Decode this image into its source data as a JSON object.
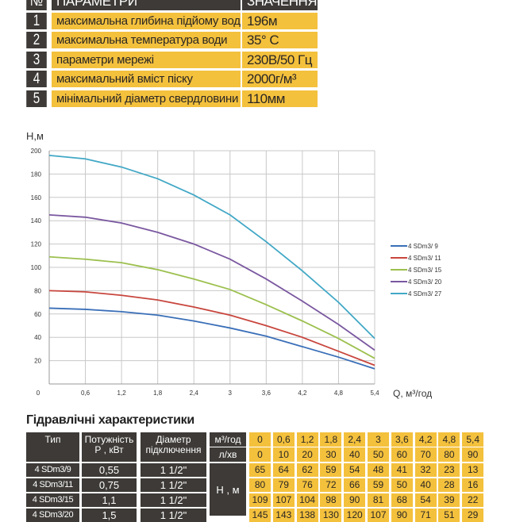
{
  "params_table": {
    "headers": {
      "num": "№",
      "param": "ПАРАМЕТРИ",
      "value": "ЗНАЧЕННЯ"
    },
    "rows": [
      {
        "num": "1",
        "param": "максимальна глибина підйому води",
        "value": "196м"
      },
      {
        "num": "2",
        "param": "максимальна температура води",
        "value": "35° C"
      },
      {
        "num": "3",
        "param": "параметри мережі",
        "value": "230В/50 Гц"
      },
      {
        "num": "4",
        "param": "максимальний вміст піску",
        "value": "2000г/м³"
      },
      {
        "num": "5",
        "param": "мінімальний діаметр свердловини",
        "value": "110мм"
      }
    ]
  },
  "chart_data": {
    "type": "line",
    "ylabel": "Н,м",
    "xlabel": "Q,  м³/год",
    "x": [
      0,
      0.6,
      1.2,
      1.8,
      2.4,
      3,
      3.6,
      4.2,
      4.8,
      5.4
    ],
    "x_tick_labels": [
      "0",
      "0,6",
      "1,2",
      "1,8",
      "2,4",
      "3",
      "3,6",
      "4,2",
      "4,8",
      "5,4"
    ],
    "y_ticks": [
      20,
      40,
      60,
      80,
      100,
      120,
      140,
      160,
      180,
      200
    ],
    "xlim": [
      0,
      5.4
    ],
    "ylim": [
      0,
      200
    ],
    "grid": true,
    "legend": "right",
    "series": [
      {
        "name": "4 SDm3/ 9",
        "color": "#3a6fb8",
        "values": [
          65,
          64,
          62,
          59,
          54,
          48,
          41,
          32,
          23,
          13
        ]
      },
      {
        "name": "4 SDm3/ 11",
        "color": "#c8463e",
        "values": [
          80,
          79,
          76,
          72,
          66,
          59,
          50,
          40,
          28,
          16
        ]
      },
      {
        "name": "4 SDm3/ 15",
        "color": "#9cc04e",
        "values": [
          109,
          107,
          104,
          98,
          90,
          81,
          68,
          54,
          39,
          22
        ]
      },
      {
        "name": "4 SDm3/ 20",
        "color": "#7a58a0",
        "values": [
          145,
          143,
          138,
          130,
          120,
          107,
          90,
          71,
          51,
          29
        ]
      },
      {
        "name": "4 SDm3/ 27",
        "color": "#42a8c6",
        "values": [
          196,
          193,
          186,
          176,
          162,
          145,
          122,
          97,
          70,
          39
        ]
      }
    ]
  },
  "hydraulic": {
    "title": "Гідравлічні характеристики",
    "headers": {
      "type": "Тип",
      "power": "Потужність\nР , кВт",
      "diameter": "Діаметр\nпідключення",
      "unit_m3": "м³/год",
      "unit_l": "л/хв",
      "unit_h": "Н , м"
    },
    "flow_m3": [
      "0",
      "0,6",
      "1,2",
      "1,8",
      "2,4",
      "3",
      "3,6",
      "4,2",
      "4,8",
      "5,4"
    ],
    "flow_l": [
      "0",
      "10",
      "20",
      "30",
      "40",
      "50",
      "60",
      "70",
      "80",
      "90"
    ],
    "rows": [
      {
        "type": "4 SDm3/9",
        "power": "0,55",
        "diameter": "1 1/2\"",
        "h": [
          "65",
          "64",
          "62",
          "59",
          "54",
          "48",
          "41",
          "32",
          "23",
          "13"
        ]
      },
      {
        "type": "4 SDm3/11",
        "power": "0,75",
        "diameter": "1 1/2\"",
        "h": [
          "80",
          "79",
          "76",
          "72",
          "66",
          "59",
          "50",
          "40",
          "28",
          "16"
        ]
      },
      {
        "type": "4 SDm3/15",
        "power": "1,1",
        "diameter": "1 1/2\"",
        "h": [
          "109",
          "107",
          "104",
          "98",
          "90",
          "81",
          "68",
          "54",
          "39",
          "22"
        ]
      },
      {
        "type": "4 SDm3/20",
        "power": "1,5",
        "diameter": "1 1/2\"",
        "h": [
          "145",
          "143",
          "138",
          "130",
          "120",
          "107",
          "90",
          "71",
          "51",
          "29"
        ]
      }
    ]
  },
  "colors": {
    "dark": "#3d3a37",
    "yellow": "#f4c13d"
  }
}
